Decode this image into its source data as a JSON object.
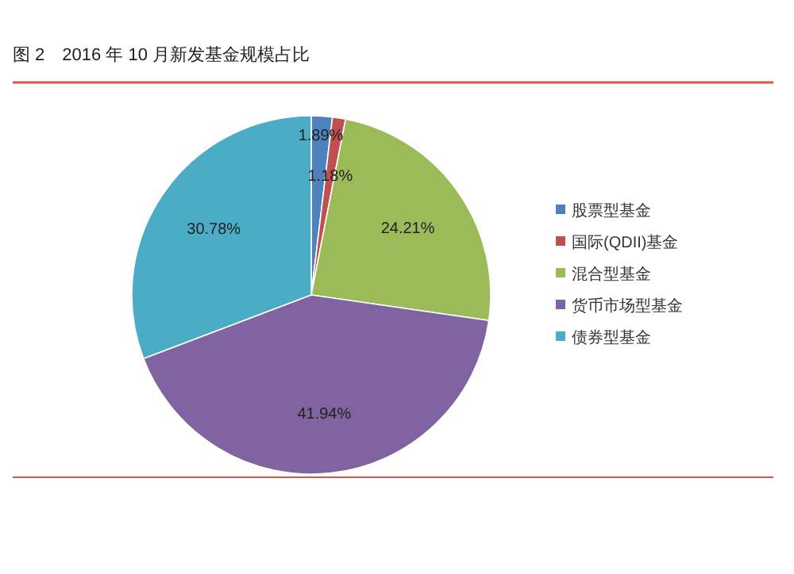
{
  "chart_data": {
    "type": "pie",
    "title": "图 2　2016 年 10 月新发基金规模占比",
    "categories": [
      "股票型基金",
      "国际(QDII)基金",
      "混合型基金",
      "货币市场型基金",
      "债券型基金"
    ],
    "values": [
      1.89,
      1.18,
      24.21,
      41.94,
      30.78
    ],
    "colors": [
      "#4f81bd",
      "#c0504d",
      "#9bbb59",
      "#8064a2",
      "#4bacc6"
    ],
    "value_labels": [
      "1.89%",
      "1.18%",
      "24.21%",
      "41.94%",
      "30.78%"
    ],
    "legend": "right"
  }
}
